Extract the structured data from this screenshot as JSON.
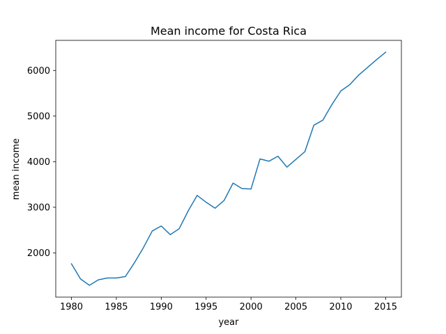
{
  "chart_data": {
    "type": "line",
    "title": "Mean income for Costa Rica",
    "xlabel": "year",
    "ylabel": "mean income",
    "xlim": [
      1978.25,
      2016.75
    ],
    "ylim": [
      1030,
      6660
    ],
    "x_ticks": [
      1980,
      1985,
      1990,
      1995,
      2000,
      2005,
      2010,
      2015
    ],
    "y_ticks": [
      2000,
      3000,
      4000,
      5000,
      6000
    ],
    "grid": false,
    "legend": "none",
    "series": [
      {
        "color": "#1f77b4",
        "x": [
          1980,
          1981,
          1982,
          1983,
          1984,
          1985,
          1986,
          1987,
          1988,
          1989,
          1990,
          1991,
          1992,
          1993,
          1994,
          1995,
          1996,
          1997,
          1998,
          1999,
          2000,
          2001,
          2002,
          2003,
          2004,
          2005,
          2006,
          2007,
          2008,
          2009,
          2010,
          2011,
          2012,
          2013,
          2014,
          2015
        ],
        "y": [
          1760,
          1430,
          1290,
          1410,
          1450,
          1450,
          1480,
          1780,
          2110,
          2480,
          2590,
          2400,
          2530,
          2920,
          3260,
          3110,
          2980,
          3150,
          3530,
          3410,
          3400,
          4060,
          4010,
          4120,
          3880,
          4050,
          4220,
          4800,
          4910,
          5250,
          5550,
          5690,
          5900,
          6070,
          6240,
          6400
        ]
      }
    ]
  }
}
